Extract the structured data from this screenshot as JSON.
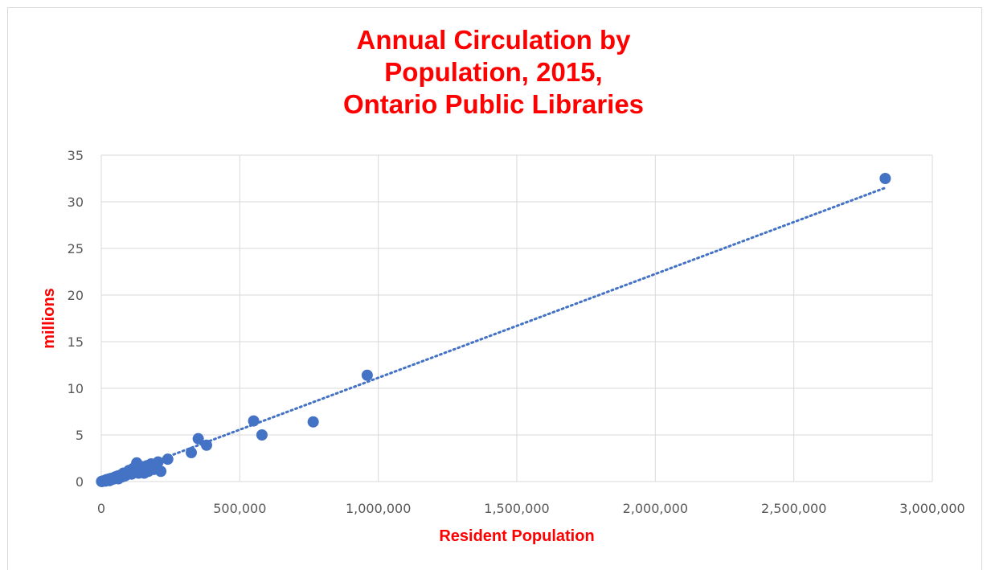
{
  "colors": {
    "title": "#ff0000",
    "axis_title": "#ff0000",
    "points": "#4472c4",
    "trendline": "#4472c4",
    "grid": "#d9d9d9",
    "tick_text": "#595959"
  },
  "chart_data": {
    "type": "scatter",
    "title_lines": [
      "Annual Circulation by",
      "Population, 2015,",
      "Ontario Public Libraries"
    ],
    "xlabel": "Resident Population",
    "ylabel": "millions",
    "xlim": [
      0,
      3000000
    ],
    "ylim": [
      0,
      35
    ],
    "x_ticks": [
      "0",
      "500,000",
      "1,000,000",
      "1,500,000",
      "2,000,000",
      "2,500,000",
      "3,000,000"
    ],
    "y_ticks": [
      "0",
      "5",
      "10",
      "15",
      "20",
      "25",
      "30",
      "35"
    ],
    "grid": true,
    "legend": "none",
    "trendline": {
      "type": "linear",
      "style": "dotted",
      "x": [
        0,
        2830000
      ],
      "y": [
        0,
        31.5
      ]
    },
    "points": [
      [
        2830000,
        32.5
      ],
      [
        960000,
        11.4
      ],
      [
        765000,
        6.4
      ],
      [
        580000,
        5.0
      ],
      [
        550000,
        6.5
      ],
      [
        380000,
        3.9
      ],
      [
        350000,
        4.6
      ],
      [
        325000,
        3.1
      ],
      [
        240000,
        2.4
      ],
      [
        215000,
        1.1
      ],
      [
        205000,
        2.1
      ],
      [
        195000,
        1.8
      ],
      [
        190000,
        1.3
      ],
      [
        180000,
        1.9
      ],
      [
        175000,
        1.5
      ],
      [
        170000,
        1.1
      ],
      [
        165000,
        1.7
      ],
      [
        160000,
        1.4
      ],
      [
        155000,
        0.9
      ],
      [
        150000,
        1.6
      ],
      [
        145000,
        1.2
      ],
      [
        140000,
        1.5
      ],
      [
        135000,
        0.9
      ],
      [
        128000,
        2.0
      ],
      [
        125000,
        1.3
      ],
      [
        120000,
        1.0
      ],
      [
        115000,
        1.4
      ],
      [
        110000,
        0.8
      ],
      [
        105000,
        1.1
      ],
      [
        100000,
        1.2
      ],
      [
        95000,
        0.9
      ],
      [
        90000,
        0.7
      ],
      [
        85000,
        0.6
      ],
      [
        80000,
        0.9
      ],
      [
        75000,
        0.5
      ],
      [
        70000,
        0.7
      ],
      [
        65000,
        0.5
      ],
      [
        60000,
        0.6
      ],
      [
        55000,
        0.4
      ],
      [
        50000,
        0.5
      ],
      [
        45000,
        0.4
      ],
      [
        40000,
        0.3
      ],
      [
        36000,
        0.35
      ],
      [
        32000,
        0.3
      ],
      [
        28000,
        0.2
      ],
      [
        25000,
        0.25
      ],
      [
        22000,
        0.15
      ],
      [
        19000,
        0.2
      ],
      [
        16000,
        0.1
      ],
      [
        13000,
        0.12
      ],
      [
        10000,
        0.08
      ],
      [
        8000,
        0.06
      ],
      [
        6000,
        0.05
      ],
      [
        4000,
        0.03
      ],
      [
        2000,
        0.02
      ],
      [
        1000,
        0.01
      ],
      [
        15000,
        0.05
      ],
      [
        30000,
        0.1
      ],
      [
        42000,
        0.25
      ],
      [
        62000,
        0.3
      ]
    ]
  }
}
